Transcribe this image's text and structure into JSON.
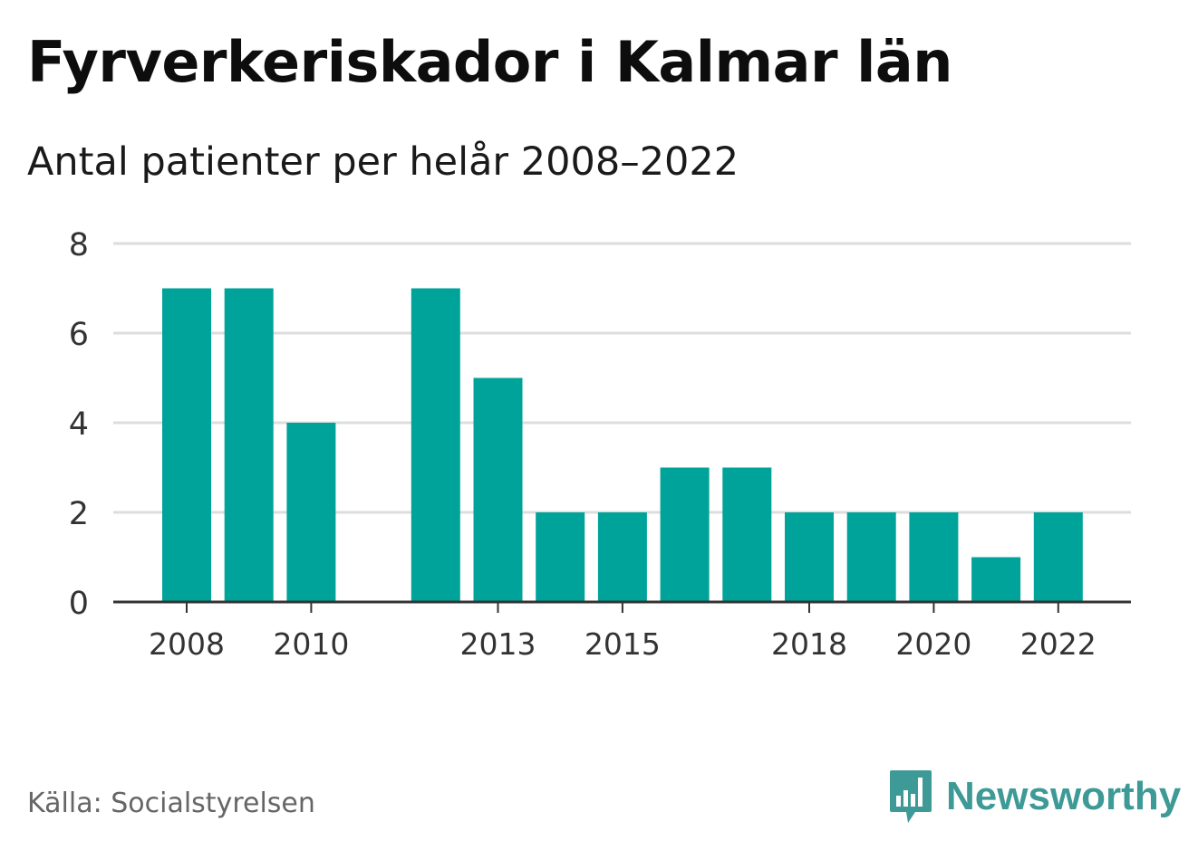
{
  "title": "Fyrverkeriskador i Kalmar län",
  "subtitle": "Antal patienter per helår 2008–2022",
  "source": "Källa: Socialstyrelsen",
  "brand": {
    "name": "Newsworthy",
    "color": "#3d9a96"
  },
  "colors": {
    "bar": "#00a39a",
    "grid": "#dddddd",
    "axis": "#333333"
  },
  "chart_data": {
    "type": "bar",
    "title": "Fyrverkeriskador i Kalmar län",
    "subtitle": "Antal patienter per helår 2008–2022",
    "categories": [
      "2008",
      "2009",
      "2010",
      "2011",
      "2012",
      "2013",
      "2014",
      "2015",
      "2016",
      "2017",
      "2018",
      "2019",
      "2020",
      "2021",
      "2022"
    ],
    "values": [
      7,
      7,
      4,
      null,
      7,
      5,
      2,
      2,
      3,
      3,
      2,
      2,
      2,
      1,
      2
    ],
    "x_tick_labels": [
      "2008",
      "2010",
      "2013",
      "2015",
      "2018",
      "2020",
      "2022"
    ],
    "y_ticks": [
      0,
      2,
      4,
      6,
      8
    ],
    "ylim": [
      0,
      8
    ],
    "xlabel": "",
    "ylabel": "",
    "grid": true,
    "legend": "none"
  }
}
